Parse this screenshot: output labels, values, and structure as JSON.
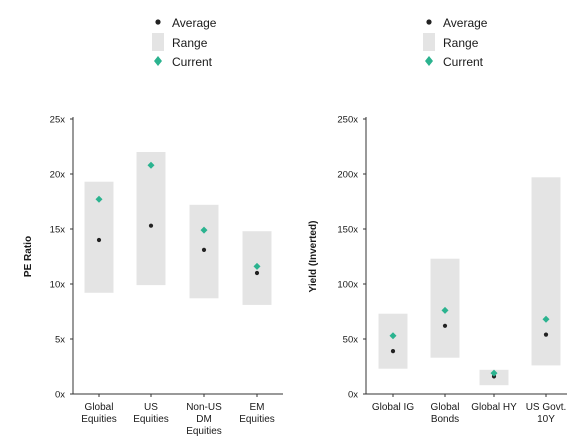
{
  "colors": {
    "average": "#222222",
    "range": "#e4e4e4",
    "current": "#2bb38f",
    "axis": "#333333",
    "text": "#1a1a1a"
  },
  "chart_data": [
    {
      "type": "range-dot",
      "ylabel": "PE Ratio",
      "ylim": [
        0,
        25
      ],
      "yticks": [
        "0x",
        "5x",
        "10x",
        "15x",
        "20x",
        "25x"
      ],
      "categories": [
        [
          "Global",
          "Equities"
        ],
        [
          "US",
          "Equities"
        ],
        [
          "Non-US",
          "DM",
          "Equities"
        ],
        [
          "EM",
          "Equities"
        ]
      ],
      "range_low": [
        9.2,
        9.9,
        8.7,
        8.1
      ],
      "range_high": [
        19.3,
        22.0,
        17.2,
        14.8
      ],
      "average": [
        14.0,
        15.3,
        13.1,
        11.0
      ],
      "current": [
        17.7,
        20.8,
        14.9,
        11.6
      ],
      "legend": {
        "average": "Average",
        "range": "Range",
        "current": "Current"
      }
    },
    {
      "type": "range-dot",
      "ylabel": "Yield (Inverted)",
      "ylim": [
        0,
        250
      ],
      "yticks": [
        "0x",
        "50x",
        "100x",
        "150x",
        "200x",
        "250x"
      ],
      "categories": [
        [
          "Global IG"
        ],
        [
          "Global",
          "Bonds"
        ],
        [
          "Global HY"
        ],
        [
          "US Govt.",
          "10Y"
        ]
      ],
      "range_low": [
        23,
        33,
        8,
        26
      ],
      "range_high": [
        73,
        123,
        22,
        197
      ],
      "average": [
        39,
        62,
        16,
        54
      ],
      "current": [
        53,
        76,
        19,
        68
      ],
      "legend": {
        "average": "Average",
        "range": "Range",
        "current": "Current"
      }
    }
  ]
}
